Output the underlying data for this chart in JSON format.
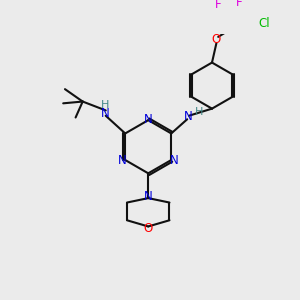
{
  "background_color": "#ebebeb",
  "atom_colors": {
    "N": "#0000dd",
    "O": "#ff0000",
    "Cl": "#00bb00",
    "F": "#dd00dd",
    "C": "#111111",
    "H": "#448888"
  },
  "figsize": [
    3.0,
    3.0
  ],
  "dpi": 100
}
